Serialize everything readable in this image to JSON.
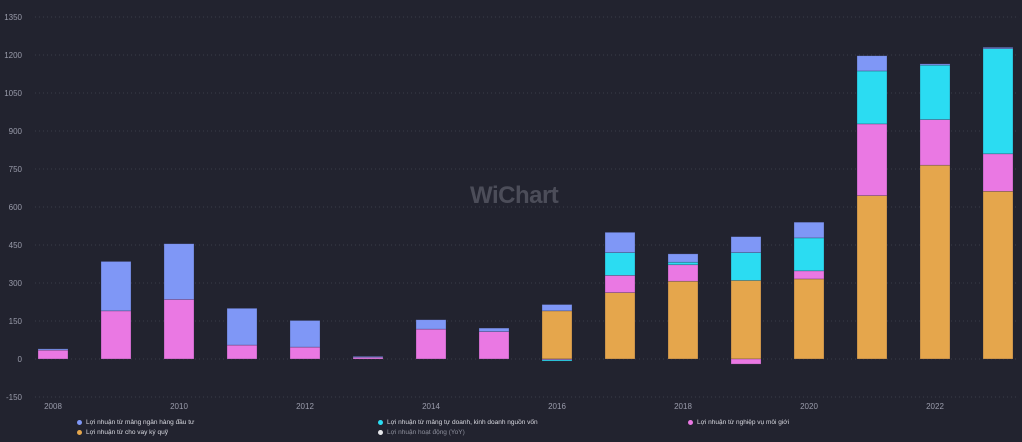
{
  "watermark": "WiChart",
  "chart_data": {
    "type": "bar",
    "stacked": true,
    "title": "",
    "xlabel": "",
    "ylabel": "",
    "ylim": [
      -150,
      1350
    ],
    "yticks": [
      -150,
      0,
      150,
      300,
      450,
      600,
      750,
      900,
      1050,
      1200,
      1350
    ],
    "categories": [
      "2008",
      "2009",
      "2010",
      "2011",
      "2012",
      "2013",
      "2014",
      "2015",
      "2016",
      "2017",
      "2018",
      "2019",
      "2020",
      "2021",
      "2022",
      "2023"
    ],
    "xtick_labels": [
      "2008",
      "2010",
      "2012",
      "2014",
      "2016",
      "2018",
      "2020",
      "2022"
    ],
    "grid": true,
    "legend_position": "bottom",
    "series": [
      {
        "name": "Lợi nhuận từ cho vay ký quỹ",
        "color": "#e5a64c",
        "values": [
          0,
          0,
          0,
          0,
          0,
          0,
          0,
          0,
          190,
          262,
          307,
          310,
          316,
          645,
          765,
          662
        ]
      },
      {
        "name": "Lợi nhuận từ nghiệp vụ môi giới",
        "color": "#ea78e3",
        "values": [
          35,
          190,
          235,
          55,
          47,
          8,
          118,
          108,
          -3,
          68,
          65,
          -20,
          32,
          283,
          180,
          148
        ]
      },
      {
        "name": "Lợi nhuận từ mảng tự doanh, kinh doanh nguồn vốn",
        "color": "#2bdcf2",
        "values": [
          0,
          0,
          0,
          0,
          0,
          0,
          0,
          0,
          -5,
          90,
          10,
          110,
          130,
          209,
          215,
          415
        ]
      },
      {
        "name": "Lợi nhuận từ mảng ngân hàng đầu tư",
        "color": "#7f97f6",
        "values": [
          5,
          195,
          220,
          145,
          105,
          2,
          37,
          14,
          25,
          80,
          33,
          63,
          62,
          60,
          5,
          5
        ]
      }
    ],
    "legend": [
      {
        "name": "Lợi nhuận từ mảng ngân hàng đầu tư",
        "color": "#7f97f6"
      },
      {
        "name": "Lợi nhuận từ mảng tự doanh, kinh doanh nguồn vốn",
        "color": "#2bdcf2"
      },
      {
        "name": "Lợi nhuận từ nghiệp vụ môi giới",
        "color": "#ea78e3"
      },
      {
        "name": "Lợi nhuận từ cho vay ký quỹ",
        "color": "#e5a64c"
      },
      {
        "name": "Lợi nhuận hoạt động (YoY)",
        "color": "#e6e6ea",
        "hidden": true
      }
    ]
  }
}
